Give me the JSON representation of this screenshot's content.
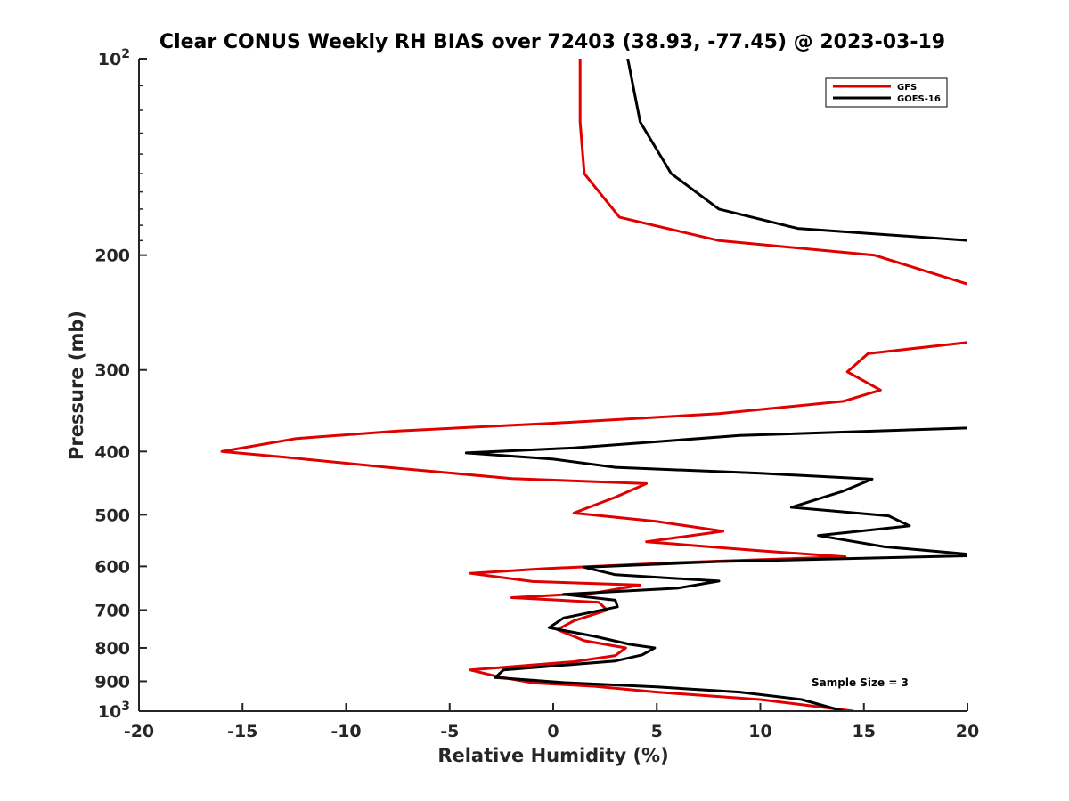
{
  "chart_data": {
    "type": "line",
    "title": "Clear CONUS Weekly RH BIAS over 72403 (38.93, -77.45) @ 2023-03-19",
    "xlabel": "Relative Humidity (%)",
    "ylabel": "Pressure (mb)",
    "xlim": [
      -20,
      20
    ],
    "ylim": [
      100,
      1000
    ],
    "y_scale": "log",
    "y_reversed": true,
    "x_ticks": [
      -20,
      -15,
      -10,
      -5,
      0,
      5,
      10,
      15,
      20
    ],
    "x_tick_labels": [
      "-20",
      "-15",
      "-10",
      "-5",
      "0",
      "5",
      "10",
      "15",
      "20"
    ],
    "y_ticks": [
      100,
      200,
      300,
      400,
      500,
      600,
      700,
      800,
      900,
      1000
    ],
    "y_tick_labels": [
      {
        "base": "10",
        "exp": "2"
      },
      {
        "base": "200",
        "exp": ""
      },
      {
        "base": "300",
        "exp": ""
      },
      {
        "base": "400",
        "exp": ""
      },
      {
        "base": "500",
        "exp": ""
      },
      {
        "base": "600",
        "exp": ""
      },
      {
        "base": "700",
        "exp": ""
      },
      {
        "base": "800",
        "exp": ""
      },
      {
        "base": "900",
        "exp": ""
      },
      {
        "base": "10",
        "exp": "3"
      }
    ],
    "grid": false,
    "legend_position": "top-right",
    "annotation": "Sample Size = 3",
    "series": [
      {
        "name": "GFS",
        "color": "#e00000",
        "points": [
          [
            1.3,
            100
          ],
          [
            1.3,
            125
          ],
          [
            1.5,
            150
          ],
          [
            3.2,
            175
          ],
          [
            8,
            190
          ],
          [
            15.5,
            200
          ],
          [
            20.1,
            222
          ],
          [
            20.1,
            272
          ],
          [
            15.2,
            283
          ],
          [
            14.2,
            302
          ],
          [
            15.8,
            322
          ],
          [
            14,
            335
          ],
          [
            8,
            350
          ],
          [
            0,
            362
          ],
          [
            -7.5,
            372
          ],
          [
            -12.4,
            382
          ],
          [
            -16,
            400
          ],
          [
            -13,
            408
          ],
          [
            -8,
            423
          ],
          [
            -2,
            440
          ],
          [
            4.5,
            448
          ],
          [
            3,
            470
          ],
          [
            1,
            497
          ],
          [
            5,
            512
          ],
          [
            8.2,
            530
          ],
          [
            4.5,
            550
          ],
          [
            10,
            568
          ],
          [
            14.1,
            580
          ],
          [
            6,
            592
          ],
          [
            -0.5,
            605
          ],
          [
            -4,
            615
          ],
          [
            -1,
            633
          ],
          [
            4.2,
            641
          ],
          [
            2,
            659
          ],
          [
            -2,
            670
          ],
          [
            2.2,
            681
          ],
          [
            2.6,
            700
          ],
          [
            1,
            727
          ],
          [
            0.2,
            750
          ],
          [
            1.5,
            780
          ],
          [
            3.5,
            800
          ],
          [
            3,
            822
          ],
          [
            1,
            840
          ],
          [
            -4,
            865
          ],
          [
            -2.7,
            885
          ],
          [
            -1,
            905
          ],
          [
            2,
            916
          ],
          [
            5,
            935
          ],
          [
            10,
            960
          ],
          [
            14.5,
            1000
          ]
        ]
      },
      {
        "name": "GOES-16",
        "color": "#000000",
        "points": [
          [
            3.6,
            100
          ],
          [
            4.2,
            125
          ],
          [
            5.7,
            150
          ],
          [
            8,
            170
          ],
          [
            11.8,
            182
          ],
          [
            20.1,
            190
          ],
          [
            20.1,
            368
          ],
          [
            9,
            378
          ],
          [
            1,
            395
          ],
          [
            -4.2,
            402
          ],
          [
            0,
            411
          ],
          [
            3,
            423
          ],
          [
            10,
            432
          ],
          [
            15.4,
            441
          ],
          [
            14,
            460
          ],
          [
            11.5,
            487
          ],
          [
            16.2,
            502
          ],
          [
            17.2,
            520
          ],
          [
            12.8,
            538
          ],
          [
            16,
            560
          ],
          [
            20.1,
            575
          ],
          [
            20.1,
            578
          ],
          [
            8,
            590
          ],
          [
            1.5,
            602
          ],
          [
            3,
            618
          ],
          [
            8,
            632
          ],
          [
            6,
            648
          ],
          [
            0.5,
            662
          ],
          [
            3,
            676
          ],
          [
            3.1,
            692
          ],
          [
            0.5,
            720
          ],
          [
            -0.2,
            745
          ],
          [
            2,
            768
          ],
          [
            3.7,
            790
          ],
          [
            4.9,
            800
          ],
          [
            4.3,
            820
          ],
          [
            3,
            838
          ],
          [
            -2.4,
            865
          ],
          [
            -2.8,
            888
          ],
          [
            0.5,
            904
          ],
          [
            5,
            918
          ],
          [
            9,
            935
          ],
          [
            12,
            960
          ],
          [
            14,
            1000
          ]
        ]
      }
    ]
  }
}
